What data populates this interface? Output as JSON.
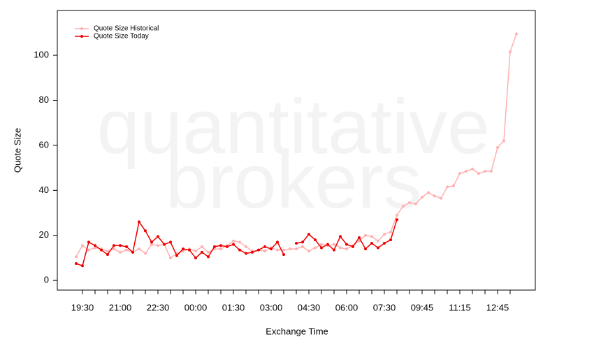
{
  "chart_data": {
    "type": "line",
    "watermark": [
      "quantitative",
      "brokers"
    ],
    "x_label": "Exchange Time",
    "y_label": "Quote Size",
    "categories": [
      null,
      "19:30",
      null,
      null,
      null,
      null,
      null,
      "21:00",
      null,
      null,
      null,
      null,
      null,
      "22:30",
      null,
      null,
      null,
      null,
      null,
      "00:00",
      null,
      null,
      null,
      null,
      null,
      "01:30",
      null,
      null,
      null,
      null,
      null,
      "03:00",
      null,
      null,
      null,
      null,
      null,
      "04:30",
      null,
      null,
      null,
      null,
      null,
      "06:00",
      null,
      null,
      null,
      null,
      null,
      "07:30",
      null,
      null,
      null,
      null,
      null,
      "09:45",
      null,
      null,
      null,
      null,
      null,
      "11:15",
      null,
      null,
      null,
      null,
      null,
      "12:45",
      null,
      null,
      null
    ],
    "series": [
      {
        "name": "Quote Size Historical",
        "color": "#ffb0b0",
        "values": [
          10.5,
          15.5,
          13.5,
          14.5,
          14,
          13,
          14,
          12.5,
          13.5,
          12.5,
          14,
          12,
          16,
          15.5,
          16,
          10,
          12,
          13,
          14,
          13,
          15,
          12.5,
          14,
          14,
          15.5,
          17.5,
          17,
          15,
          13,
          13.5,
          13,
          14.5,
          13.5,
          13.5,
          14,
          14,
          15,
          13,
          14.5,
          16,
          15.5,
          16,
          14.5,
          14,
          15.5,
          17.5,
          20,
          19.5,
          17.5,
          20.5,
          21.5,
          29,
          33,
          34.5,
          34,
          37,
          39,
          37.5,
          36.5,
          41.5,
          42,
          47.5,
          48.5,
          49.5,
          47.5,
          48.5,
          48.5,
          59,
          62,
          101.5,
          109.5
        ]
      },
      {
        "name": "Quote Size Today",
        "color": "#ee0000",
        "values": [
          7.5,
          6.5,
          17,
          15.5,
          13.5,
          11.5,
          15.5,
          15.5,
          15,
          12.5,
          26,
          22,
          17,
          19.5,
          16,
          17,
          11,
          14,
          13.5,
          10,
          12.5,
          10.5,
          15,
          15.5,
          15,
          16,
          13.5,
          12,
          12.5,
          13.5,
          15,
          14,
          17,
          11.5,
          null,
          16.5,
          17,
          20.5,
          18,
          14.5,
          16,
          13.5,
          19.5,
          16,
          15,
          19,
          14,
          16.5,
          14.5,
          16.5,
          18,
          27,
          null,
          null,
          null,
          null,
          null,
          null,
          null,
          null,
          null,
          null,
          null,
          null,
          null,
          null,
          null,
          null,
          null,
          null,
          null
        ]
      }
    ],
    "ylim": [
      -4.3,
      119.9
    ],
    "yticks": [
      0,
      20,
      40,
      60,
      80,
      100
    ],
    "legend": "top-left"
  }
}
